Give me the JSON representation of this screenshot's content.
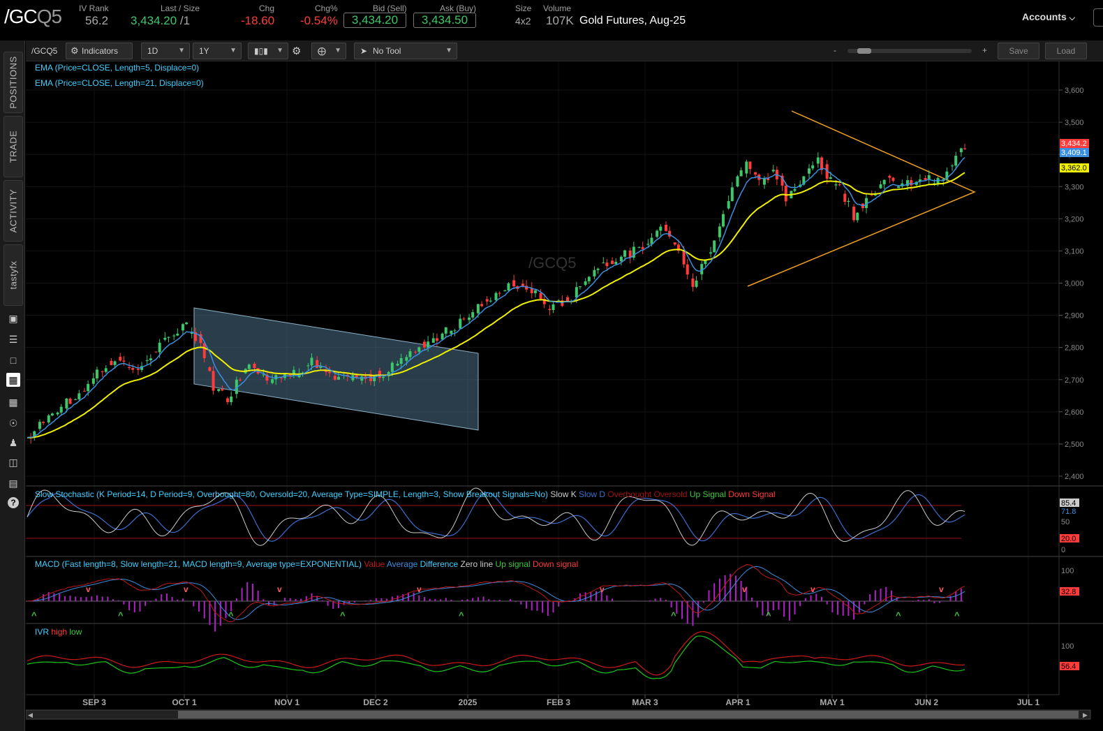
{
  "quote": {
    "symbol_main": "/GC",
    "symbol_dim": "Q5",
    "iv_rank_label": "IV Rank",
    "iv_rank": "56.2",
    "last_label": "Last / Size",
    "last": "3,434.20",
    "size": "/1",
    "chg_label": "Chg",
    "chg": "-18.60",
    "chgpct_label": "Chg%",
    "chgpct": "-0.54%",
    "bid_label": "Bid (Sell)",
    "bid": "3,434.20",
    "ask_label": "Ask (Buy)",
    "ask": "3,434.50",
    "size_label": "Size",
    "size_val": "4x2",
    "volume_label": "Volume",
    "volume": "107K",
    "description": "Gold Futures, Aug-25",
    "accounts_label": "Accounts",
    "colors": {
      "up": "#3cc86a",
      "down": "#ff3b3b"
    }
  },
  "left_rail": {
    "tabs": [
      "POSITIONS",
      "TRADE",
      "ACTIVITY",
      "tastyfx"
    ],
    "icons": [
      "monitor-icon",
      "list-icon",
      "window-icon",
      "chart-icon",
      "grid-icon",
      "compass-icon",
      "people-icon",
      "calendar-icon",
      "news-icon",
      "help-icon"
    ]
  },
  "toolbar": {
    "symbol": "/GCQ5",
    "indicators": "Indicators",
    "interval": "1D",
    "range": "1Y",
    "tool": "No Tool",
    "zoom_minus": "-",
    "zoom_plus": "+",
    "save": "Save",
    "load": "Load"
  },
  "chart": {
    "watermark": "/GCQ5",
    "ema5_label": "EMA (Price=CLOSE, Length=5, Displace=0)",
    "ema21_label": "EMA (Price=CLOSE, Length=21, Displace=0)",
    "price_ticks": [
      "3,600",
      "3,500",
      "3,400",
      "3,300",
      "3,200",
      "3,100",
      "3,000",
      "2,900",
      "2,800",
      "2,700",
      "2,600",
      "2,500",
      "2,400"
    ],
    "x_ticks": [
      "SEP 3",
      "OCT 1",
      "NOV 1",
      "DEC 2",
      "2025",
      "FEB 3",
      "MAR 3",
      "APR 1",
      "MAY 1",
      "JUN 2",
      "JUL 1"
    ],
    "price_labels": {
      "last": "3,434.2",
      "ema5": "3,409.1",
      "ema21": "3,362.0"
    },
    "colors": {
      "ema5": "#3b8fe0",
      "ema21": "#f0f000",
      "up_candle": "#3cc86a",
      "down_candle": "#ff3b3b",
      "trendline": "#f0a020",
      "channel": "#6f9bb5"
    }
  },
  "stochastic": {
    "title": "Slow Stochastic (K Period=14, D Period=9, Overbought=80, Oversold=20, Average Type=SIMPLE, Length=3, Show Breakout Signals=No)",
    "legend": [
      "Slow K",
      "Slow D",
      "Overbought",
      "Oversold",
      "Up Signal",
      "Down Signal"
    ],
    "ticks": [
      "50",
      "0"
    ],
    "labels": {
      "k": "85.4",
      "d": "71.8",
      "oversold": "20.0"
    }
  },
  "macd": {
    "title": "MACD (Fast length=8, Slow length=21, MACD length=9, Average type=EXPONENTIAL)",
    "legend": [
      "Value",
      "Average",
      "Difference",
      "Zero line",
      "Up signal",
      "Down signal"
    ],
    "ticks": [
      "100"
    ],
    "labels": {
      "value": "32.8"
    }
  },
  "ivr": {
    "title": "IVR",
    "legend": [
      "high",
      "low"
    ],
    "ticks": [
      "100"
    ],
    "labels": {
      "value": "56.4"
    }
  }
}
